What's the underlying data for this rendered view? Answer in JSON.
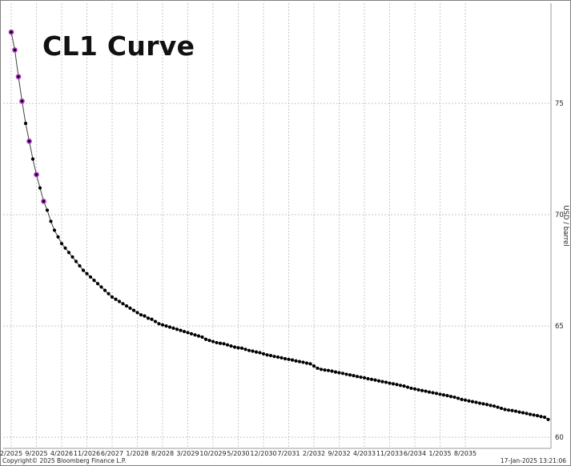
{
  "chart_data": {
    "type": "line",
    "title": "CL1 Curve",
    "ylabel": "USD / barrel",
    "xlabel": "",
    "ylim": [
      59.5,
      79.5
    ],
    "yticks": [
      60,
      65,
      70,
      75
    ],
    "x_tick_labels": [
      "2/2025",
      "9/2025",
      "4/2026",
      "11/2026",
      "6/2027",
      "1/2028",
      "8/2028",
      "3/2029",
      "10/2029",
      "5/2030",
      "12/2030",
      "7/2031",
      "2/2032",
      "9/2032",
      "4/2033",
      "11/2033",
      "6/2034",
      "1/2035",
      "8/2035"
    ],
    "grid": true,
    "series": [
      {
        "name": "",
        "start_month": "2/2025",
        "values": [
          78.2,
          77.4,
          76.2,
          75.1,
          74.1,
          73.3,
          72.5,
          71.8,
          71.2,
          70.6,
          70.2,
          69.7,
          69.3,
          69.0,
          68.7,
          68.5,
          68.3,
          68.1,
          67.9,
          67.7,
          67.5,
          67.35,
          67.2,
          67.05,
          66.9,
          66.75,
          66.6,
          66.45,
          66.3,
          66.2,
          66.1,
          66.0,
          65.9,
          65.8,
          65.7,
          65.6,
          65.5,
          65.45,
          65.35,
          65.3,
          65.2,
          65.1,
          65.05,
          65.0,
          64.95,
          64.9,
          64.85,
          64.8,
          64.75,
          64.7,
          64.65,
          64.6,
          64.55,
          64.5,
          64.4,
          64.35,
          64.3,
          64.25,
          64.22,
          64.2,
          64.15,
          64.1,
          64.05,
          64.02,
          64.0,
          63.95,
          63.9,
          63.87,
          63.83,
          63.8,
          63.75,
          63.7,
          63.67,
          63.63,
          63.6,
          63.57,
          63.53,
          63.5,
          63.47,
          63.43,
          63.4,
          63.37,
          63.33,
          63.3,
          63.2,
          63.1,
          63.05,
          63.02,
          63.0,
          62.97,
          62.93,
          62.9,
          62.87,
          62.83,
          62.8,
          62.77,
          62.73,
          62.7,
          62.67,
          62.63,
          62.6,
          62.57,
          62.53,
          62.5,
          62.47,
          62.43,
          62.4,
          62.37,
          62.33,
          62.3,
          62.25,
          62.2,
          62.17,
          62.13,
          62.1,
          62.07,
          62.03,
          62.0,
          61.97,
          61.93,
          61.9,
          61.87,
          61.83,
          61.8,
          61.75,
          61.7,
          61.67,
          61.63,
          61.6,
          61.57,
          61.53,
          61.5,
          61.47,
          61.43,
          61.4,
          61.35,
          61.3,
          61.25,
          61.22,
          61.2,
          61.17,
          61.13,
          61.1,
          61.07,
          61.03,
          61.0,
          60.97,
          60.93,
          60.9,
          60.8
        ],
        "highlighted_count": 10,
        "highlight_color": "#b030c8",
        "line_color": "#404040",
        "marker_color": "#000000"
      }
    ]
  },
  "footer": {
    "copyright": "Copyright© 2025 Bloomberg Finance L.P.",
    "timestamp": "17-Jan-2025 13:21:06"
  }
}
